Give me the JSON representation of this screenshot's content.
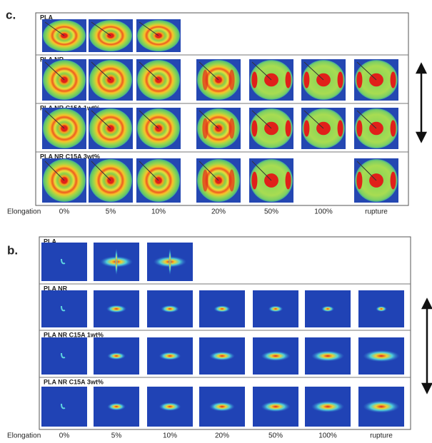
{
  "panels": [
    {
      "label": "c.",
      "rows": [
        "PLA",
        "PLA NR",
        "PLA NR C15A 1wt%",
        "PLA NR C15A 3wt%"
      ],
      "axis_label": "Elongation",
      "columns": [
        "0%",
        "5%",
        "10%",
        "20%",
        "50%",
        "100%",
        "rupture"
      ]
    },
    {
      "label": "b.",
      "rows": [
        "PLA",
        "PLA NR",
        "PLA NR C15A 1wt%",
        "PLA NR C15A 3wt%"
      ],
      "axis_label": "Elongation",
      "columns": [
        "0%",
        "5%",
        "10%",
        "20%",
        "50%",
        "100%",
        "rupture"
      ]
    }
  ]
}
